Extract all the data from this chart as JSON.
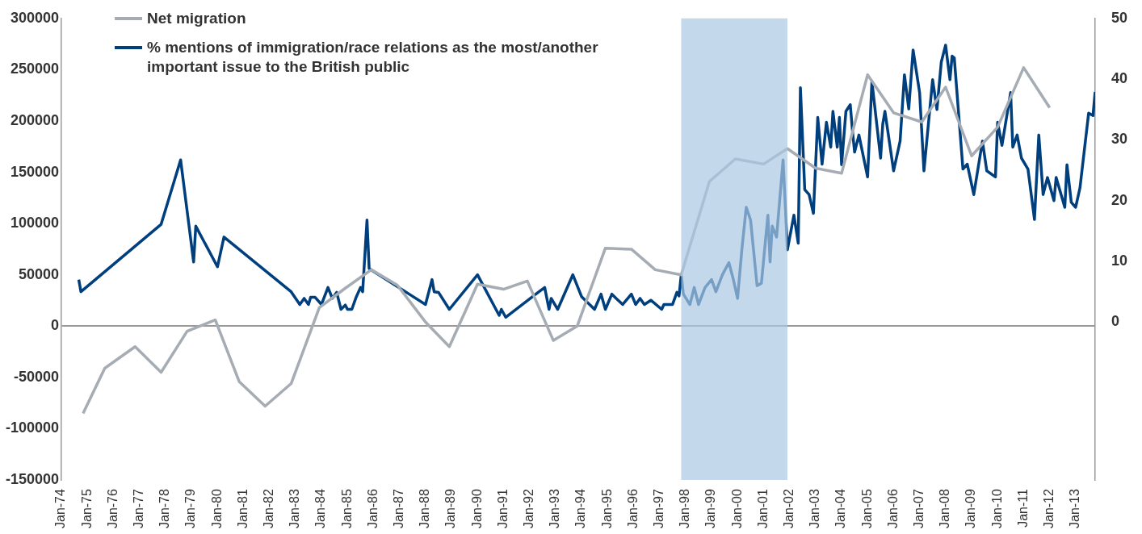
{
  "chart_data": {
    "type": "line",
    "xlim": [
      "1974-01",
      "2013-10"
    ],
    "xticks": [
      {
        "value": "1974-01",
        "label": "Jan-74"
      },
      {
        "value": "1975-01",
        "label": "Jan-75"
      },
      {
        "value": "1976-01",
        "label": "Jan-76"
      },
      {
        "value": "1977-01",
        "label": "Jan-77"
      },
      {
        "value": "1978-01",
        "label": "Jan-78"
      },
      {
        "value": "1979-01",
        "label": "Jan-79"
      },
      {
        "value": "1980-01",
        "label": "Jan-80"
      },
      {
        "value": "1981-01",
        "label": "Jan-81"
      },
      {
        "value": "1982-01",
        "label": "Jan-82"
      },
      {
        "value": "1983-01",
        "label": "Jan-83"
      },
      {
        "value": "1984-01",
        "label": "Jan-84"
      },
      {
        "value": "1985-01",
        "label": "Jan-85"
      },
      {
        "value": "1986-01",
        "label": "Jan-86"
      },
      {
        "value": "1987-01",
        "label": "Jan-87"
      },
      {
        "value": "1988-01",
        "label": "Jan-88"
      },
      {
        "value": "1989-01",
        "label": "Jan-89"
      },
      {
        "value": "1990-01",
        "label": "Jan-90"
      },
      {
        "value": "1991-01",
        "label": "Jan-91"
      },
      {
        "value": "1992-01",
        "label": "Jan-92"
      },
      {
        "value": "1993-01",
        "label": "Jan-93"
      },
      {
        "value": "1994-01",
        "label": "Jan-94"
      },
      {
        "value": "1995-01",
        "label": "Jan-95"
      },
      {
        "value": "1996-01",
        "label": "Jan-96"
      },
      {
        "value": "1997-01",
        "label": "Jan-97"
      },
      {
        "value": "1998-01",
        "label": "Jan-98"
      },
      {
        "value": "1999-01",
        "label": "Jan-99"
      },
      {
        "value": "2000-01",
        "label": "Jan-00"
      },
      {
        "value": "2001-01",
        "label": "Jan-01"
      },
      {
        "value": "2002-01",
        "label": "Jan-02"
      },
      {
        "value": "2003-01",
        "label": "Jan-03"
      },
      {
        "value": "2004-01",
        "label": "Jan-04"
      },
      {
        "value": "2005-01",
        "label": "Jan-05"
      },
      {
        "value": "2006-01",
        "label": "Jan-06"
      },
      {
        "value": "2007-01",
        "label": "Jan-07"
      },
      {
        "value": "2008-01",
        "label": "Jan-08"
      },
      {
        "value": "2009-01",
        "label": "Jan-09"
      },
      {
        "value": "2010-01",
        "label": "Jan-10"
      },
      {
        "value": "2011-01",
        "label": "Jan-11"
      },
      {
        "value": "2012-01",
        "label": "Jan-12"
      },
      {
        "value": "2013-01",
        "label": "Jan-13"
      }
    ],
    "ylim": [
      -150000,
      300000
    ],
    "yticks": [
      -150000,
      -100000,
      -50000,
      0,
      50000,
      100000,
      150000,
      200000,
      250000,
      300000
    ],
    "y2lim": [
      -26,
      50
    ],
    "y2ticks": [
      0,
      10,
      20,
      30,
      40,
      50
    ],
    "legend": "top left",
    "bands": [
      {
        "axis": "x",
        "from": "1997-11",
        "to": "2001-12",
        "color": "#a9c8e2"
      }
    ],
    "series": [
      {
        "name": "Net migration",
        "color": "#a6acb3",
        "axis": "y",
        "x": [
          "1974-11",
          "1975-09",
          "1976-11",
          "1977-11",
          "1978-11",
          "1979-12",
          "1980-11",
          "1981-11",
          "1982-11",
          "1983-12",
          "1984-12",
          "1985-12",
          "1986-12",
          "1988-01",
          "1988-12",
          "1990-01",
          "1991-01",
          "1991-12",
          "1992-12",
          "1993-11",
          "1994-12",
          "1995-12",
          "1996-11",
          "1997-11",
          "1998-12",
          "1999-12",
          "2001-01",
          "2001-12",
          "2003-01",
          "2004-01",
          "2005-01",
          "2006-01",
          "2007-02",
          "2008-01",
          "2009-01",
          "2010-01",
          "2011-01",
          "2012-01"
        ],
        "values": [
          -85000,
          -41000,
          -20000,
          -45000,
          -5000,
          6000,
          -54000,
          -78000,
          -56000,
          18000,
          37000,
          55000,
          40000,
          4000,
          -20000,
          41000,
          36000,
          44000,
          -14000,
          0,
          76000,
          75000,
          55000,
          50000,
          141000,
          163000,
          158000,
          173000,
          154000,
          149000,
          245000,
          208000,
          199000,
          233000,
          166000,
          194000,
          252000,
          213000
        ]
      },
      {
        "name": "% mentions of immigration/race relations as the most/another important issue to the British public",
        "color": "#003f7d",
        "axis": "y2",
        "x": [
          "1974-09",
          "1974-10",
          "1977-11",
          "1978-08",
          "1979-02",
          "1979-03",
          "1980-01",
          "1980-04",
          "1982-11",
          "1983-03",
          "1983-05",
          "1983-07",
          "1983-08",
          "1983-10",
          "1984-01",
          "1984-04",
          "1984-06",
          "1984-08",
          "1984-10",
          "1984-12",
          "1985-01",
          "1985-03",
          "1985-05",
          "1985-07",
          "1985-08",
          "1985-10",
          "1985-11",
          "1988-01",
          "1988-04",
          "1988-05",
          "1988-07",
          "1988-12",
          "1990-01",
          "1990-11",
          "1990-12",
          "1991-02",
          "1992-05",
          "1992-08",
          "1992-10",
          "1992-11",
          "1993-02",
          "1993-09",
          "1994-01",
          "1994-07",
          "1994-10",
          "1994-12",
          "1995-03",
          "1995-05",
          "1995-08",
          "1995-12",
          "1996-02",
          "1996-04",
          "1996-06",
          "1996-09",
          "1997-02",
          "1997-03",
          "1997-07",
          "1997-09",
          "1997-10",
          "1997-11",
          "1997-12",
          "1998-03",
          "1998-05",
          "1998-07",
          "1998-10",
          "1999-01",
          "1999-03",
          "1999-06",
          "1999-09",
          "1999-11",
          "2000-01",
          "2000-03",
          "2000-05",
          "2000-07",
          "2000-10",
          "2000-12",
          "2001-03",
          "2001-04",
          "2001-05",
          "2001-07",
          "2001-10",
          "2001-12",
          "2002-03",
          "2002-05",
          "2002-06",
          "2002-08",
          "2002-10",
          "2002-12",
          "2003-02",
          "2003-04",
          "2003-06",
          "2003-08",
          "2003-09",
          "2003-11",
          "2003-12",
          "2004-01",
          "2004-03",
          "2004-05",
          "2004-06",
          "2004-07",
          "2004-09",
          "2005-01",
          "2005-03",
          "2005-07",
          "2005-08",
          "2005-09",
          "2006-01",
          "2006-04",
          "2006-06",
          "2006-08",
          "2006-10",
          "2007-01",
          "2007-03",
          "2007-07",
          "2007-09",
          "2007-11",
          "2008-01",
          "2008-03",
          "2008-04",
          "2008-05",
          "2008-09",
          "2008-11",
          "2009-02",
          "2009-06",
          "2009-08",
          "2009-12",
          "2010-01",
          "2010-03",
          "2010-07",
          "2010-08",
          "2010-10",
          "2010-12",
          "2011-03",
          "2011-06",
          "2011-08",
          "2011-10",
          "2011-12",
          "2012-03",
          "2012-04",
          "2012-08",
          "2012-09",
          "2012-11",
          "2013-01",
          "2013-03",
          "2013-07",
          "2013-09",
          "2013-10"
        ],
        "values": [
          7.0,
          5.0,
          16.1,
          26.7,
          9.9,
          15.8,
          9.1,
          14.0,
          5.0,
          2.9,
          3.9,
          2.9,
          4.1,
          4.1,
          2.9,
          5.7,
          3.9,
          4.9,
          2.1,
          2.8,
          2.1,
          2.1,
          4.1,
          5.7,
          5.0,
          16.8,
          8.8,
          2.9,
          7.0,
          5.0,
          4.9,
          2.1,
          7.8,
          1.1,
          2.1,
          0.8,
          4.9,
          5.7,
          2.1,
          3.9,
          2.1,
          7.8,
          4.2,
          2.1,
          4.6,
          2.1,
          4.6,
          3.9,
          2.9,
          4.6,
          2.9,
          3.9,
          2.9,
          3.6,
          2.1,
          2.9,
          2.9,
          4.9,
          4.3,
          7.8,
          4.6,
          2.9,
          5.7,
          2.9,
          5.7,
          7.0,
          5.0,
          7.8,
          9.8,
          7.1,
          3.9,
          12.0,
          18.9,
          16.8,
          6.0,
          6.4,
          17.6,
          9.9,
          15.8,
          14.0,
          26.7,
          11.9,
          17.6,
          13.0,
          38.6,
          21.8,
          21.0,
          17.9,
          33.7,
          26.0,
          32.9,
          28.8,
          34.7,
          28.8,
          33.7,
          25.9,
          34.7,
          35.8,
          31.6,
          28.0,
          30.8,
          23.9,
          39.6,
          27.0,
          32.6,
          34.7,
          24.9,
          29.8,
          40.7,
          35.1,
          44.8,
          37.8,
          24.9,
          39.9,
          35.0,
          42.8,
          45.6,
          39.9,
          43.8,
          43.5,
          25.2,
          26.0,
          21.0,
          29.8,
          24.9,
          23.9,
          32.9,
          29.1,
          37.8,
          28.8,
          30.8,
          27.0,
          25.2,
          16.9,
          30.8,
          21.0,
          23.8,
          20.0,
          23.8,
          18.9,
          25.9,
          19.7,
          18.9,
          22.1,
          34.4,
          34.0,
          37.9
        ]
      }
    ]
  }
}
